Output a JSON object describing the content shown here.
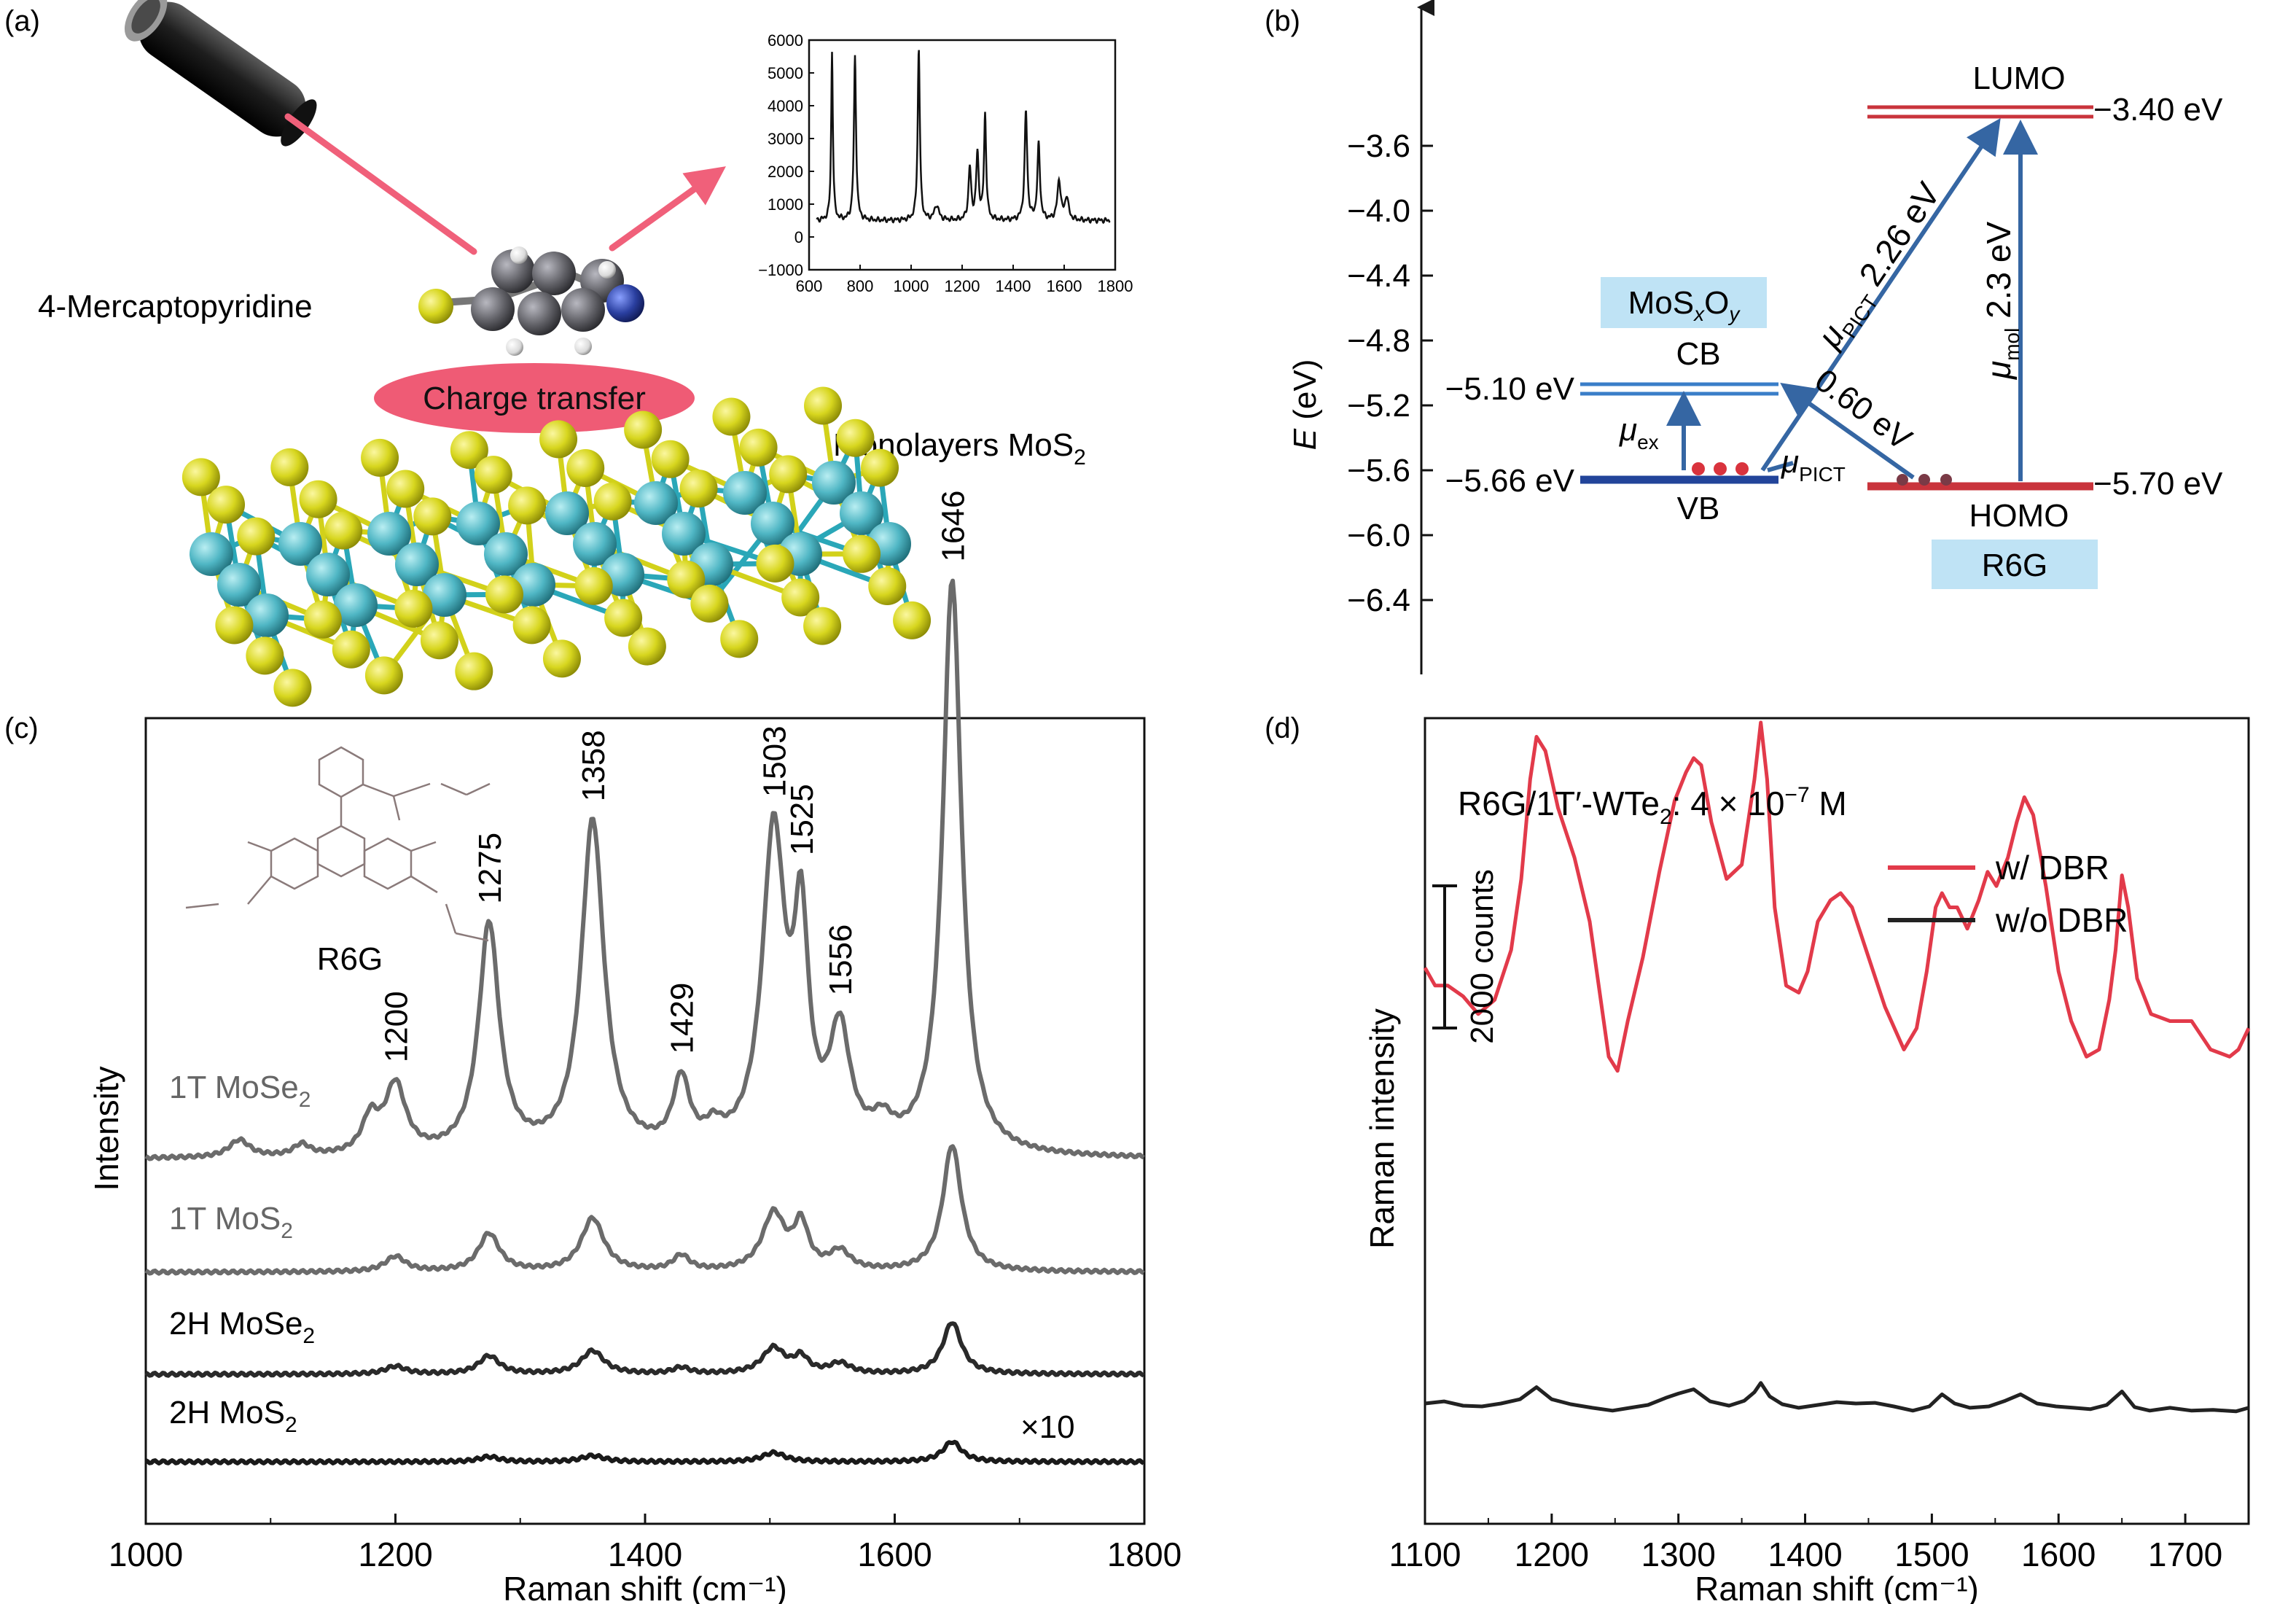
{
  "panel_a": {
    "label": "(a)",
    "molecule_label": "4-Mercaptopyridine",
    "charge_transfer_label": "Charge transfer",
    "substrate_label_main": "Monolayers MoS",
    "substrate_label_sub": "2",
    "colors": {
      "laser": "#f0607a",
      "sulfur": "#d7d61e",
      "molybdenum": "#4fb6c4",
      "carbon": "#606066",
      "nitrogen": "#2a3fa0",
      "hydrogen": "#e9e9e9",
      "ellipse": "#ef5b75"
    },
    "icons": [
      "laser-pointer-icon",
      "molecule-icon",
      "crystal-lattice-icon"
    ]
  },
  "panel_b": {
    "label": "(b)",
    "axis_label_main": "E",
    "axis_label_unit": " (eV)",
    "ticks": [
      "−3.6",
      "−4.0",
      "−4.4",
      "−4.8",
      "−5.2",
      "−5.6",
      "−6.0",
      "−6.4"
    ],
    "mosxoy_box": {
      "parts": [
        "MoS",
        "x",
        "O",
        "y"
      ]
    },
    "r6g_box": "R6G",
    "cb_label": "CB",
    "vb_label": "VB",
    "lumo_label": "LUMO",
    "homo_label": "HOMO",
    "cb_energy": "−5.10 eV",
    "vb_energy": "−5.66 eV",
    "lumo_energy": "−3.40 eV",
    "homo_energy": "−5.70 eV",
    "mu_ex": {
      "main": "μ",
      "sub": "ex"
    },
    "mu_pict_low": {
      "main": "μ",
      "sub": "PICT"
    },
    "mu_pict_high": {
      "main": "μ",
      "sub": "PICT",
      "value": " 2.26 eV"
    },
    "mu_mol": {
      "main": "μ",
      "sub": "mol",
      "value": " 2.3 eV"
    },
    "transfer_060": "0.60 eV",
    "colors": {
      "blue_level": "#3a7ec8",
      "vb_level": "#22449a",
      "red_level": "#c9343c",
      "arrow": "#3566a3",
      "box": "#bfe3f5",
      "dot": "#d9333d",
      "homo_dot": "#7a3a46"
    }
  },
  "panel_c": {
    "label": "(c)",
    "ylabel": "Intensity",
    "xlabel": "Raman shift (cm⁻¹)",
    "molecule_label": "R6G",
    "factor_label": "×10",
    "peak_labels": [
      "1200",
      "1275",
      "1358",
      "1429",
      "1503",
      "1525",
      "1556",
      "1646"
    ],
    "series_labels": [
      {
        "main": "1T MoSe",
        "sub": "2"
      },
      {
        "main": "1T MoS",
        "sub": "2"
      },
      {
        "main": "2H MoSe",
        "sub": "2"
      },
      {
        "main": "2H MoS",
        "sub": "2"
      }
    ],
    "x_ticks": [
      "1000",
      "1200",
      "1400",
      "1600",
      "1800"
    ]
  },
  "panel_d": {
    "label": "(d)",
    "ylabel": "Raman intensity",
    "xlabel": "Raman shift (cm⁻¹)",
    "annotation": {
      "p1": "R6G/1T′-WTe",
      "sub": "2",
      "p2": ": 4 × 10",
      "sup": "−7",
      "p3": " M"
    },
    "scale_label": "2000 counts",
    "x_ticks": [
      "1100",
      "1200",
      "1300",
      "1400",
      "1500",
      "1600",
      "1700"
    ],
    "legend": [
      "w/ DBR",
      "w/o DBR"
    ],
    "colors": {
      "with_dbr": "#e23a4a",
      "without_dbr": "#222222"
    }
  },
  "chart_data": [
    {
      "type": "line",
      "panel": "(a) inset",
      "xlim": [
        600,
        1800
      ],
      "ylim": [
        -1000,
        6000
      ],
      "x_ticks": [
        600,
        800,
        1000,
        1200,
        1400,
        1600,
        1800
      ],
      "y_ticks": [
        -1000,
        0,
        1000,
        2000,
        3000,
        4000,
        5000,
        6000
      ],
      "baseline": 500,
      "peaks": [
        {
          "x": 690,
          "y": 5150,
          "w": 4
        },
        {
          "x": 780,
          "y": 5000,
          "w": 5
        },
        {
          "x": 1030,
          "y": 5250,
          "w": 5
        },
        {
          "x": 1100,
          "y": 450,
          "w": 10
        },
        {
          "x": 1230,
          "y": 1600,
          "w": 6
        },
        {
          "x": 1260,
          "y": 2000,
          "w": 6
        },
        {
          "x": 1290,
          "y": 3200,
          "w": 5
        },
        {
          "x": 1450,
          "y": 3300,
          "w": 6
        },
        {
          "x": 1500,
          "y": 2300,
          "w": 6
        },
        {
          "x": 1580,
          "y": 1200,
          "w": 8
        },
        {
          "x": 1610,
          "y": 700,
          "w": 8
        }
      ]
    },
    {
      "type": "line",
      "panel": "(c)",
      "xlabel": "Raman shift (cm⁻¹)",
      "ylabel": "Intensity",
      "xlim": [
        1000,
        1800
      ],
      "x_ticks": [
        1000,
        1200,
        1400,
        1600,
        1800
      ],
      "series": [
        {
          "name": "1T MoSe2",
          "offset": 0.0,
          "scale": 1.0,
          "peaks": [
            {
              "x": 1075,
              "y": 0.03,
              "w": 10
            },
            {
              "x": 1125,
              "y": 0.02,
              "w": 8
            },
            {
              "x": 1180,
              "y": 0.06,
              "w": 8
            },
            {
              "x": 1200,
              "y": 0.12,
              "w": 10
            },
            {
              "x": 1275,
              "y": 0.4,
              "w": 10
            },
            {
              "x": 1358,
              "y": 0.58,
              "w": 11
            },
            {
              "x": 1429,
              "y": 0.12,
              "w": 8
            },
            {
              "x": 1455,
              "y": 0.03,
              "w": 8
            },
            {
              "x": 1503,
              "y": 0.55,
              "w": 11
            },
            {
              "x": 1525,
              "y": 0.36,
              "w": 7
            },
            {
              "x": 1556,
              "y": 0.2,
              "w": 10
            },
            {
              "x": 1590,
              "y": 0.04,
              "w": 10
            },
            {
              "x": 1646,
              "y": 1.0,
              "w": 9
            }
          ]
        },
        {
          "name": "1T MoS2",
          "offset": 0.0,
          "scale": 0.22,
          "peaks": [
            {
              "x": 1200,
              "y": 0.12,
              "w": 10
            },
            {
              "x": 1275,
              "y": 0.3,
              "w": 10
            },
            {
              "x": 1358,
              "y": 0.42,
              "w": 11
            },
            {
              "x": 1429,
              "y": 0.12,
              "w": 8
            },
            {
              "x": 1503,
              "y": 0.45,
              "w": 11
            },
            {
              "x": 1525,
              "y": 0.35,
              "w": 7
            },
            {
              "x": 1556,
              "y": 0.15,
              "w": 10
            },
            {
              "x": 1646,
              "y": 1.0,
              "w": 9
            }
          ]
        },
        {
          "name": "2H MoSe2",
          "offset": 0.0,
          "scale": 0.09,
          "peaks": [
            {
              "x": 1200,
              "y": 0.15,
              "w": 10
            },
            {
              "x": 1275,
              "y": 0.35,
              "w": 10
            },
            {
              "x": 1358,
              "y": 0.45,
              "w": 11
            },
            {
              "x": 1429,
              "y": 0.12,
              "w": 8
            },
            {
              "x": 1503,
              "y": 0.5,
              "w": 11
            },
            {
              "x": 1525,
              "y": 0.3,
              "w": 7
            },
            {
              "x": 1556,
              "y": 0.2,
              "w": 10
            },
            {
              "x": 1646,
              "y": 1.0,
              "w": 9
            }
          ]
        },
        {
          "name": "2H MoS2 (×10)",
          "offset": 0.0,
          "scale": 0.035,
          "peaks": [
            {
              "x": 1275,
              "y": 0.25,
              "w": 10
            },
            {
              "x": 1358,
              "y": 0.3,
              "w": 11
            },
            {
              "x": 1503,
              "y": 0.45,
              "w": 11
            },
            {
              "x": 1646,
              "y": 1.0,
              "w": 9
            }
          ]
        }
      ]
    },
    {
      "type": "line",
      "panel": "(d)",
      "xlabel": "Raman shift (cm⁻¹)",
      "ylabel": "Raman intensity",
      "xlim": [
        1100,
        1750
      ],
      "x_ticks": [
        1100,
        1200,
        1300,
        1400,
        1500,
        1600,
        1700
      ],
      "scale_bar_counts": 2000,
      "series": [
        {
          "name": "w/ DBR",
          "x": [
            1100,
            1108,
            1118,
            1130,
            1142,
            1155,
            1168,
            1176,
            1183,
            1188,
            1195,
            1205,
            1218,
            1230,
            1245,
            1252,
            1260,
            1272,
            1285,
            1297,
            1306,
            1312,
            1318,
            1326,
            1338,
            1350,
            1360,
            1365,
            1370,
            1376,
            1385,
            1395,
            1402,
            1410,
            1420,
            1428,
            1437,
            1450,
            1463,
            1478,
            1488,
            1496,
            1503,
            1508,
            1514,
            1520,
            1528,
            1537,
            1544,
            1551,
            1560,
            1567,
            1573,
            1580,
            1590,
            1600,
            1610,
            1622,
            1632,
            1640,
            1645,
            1650,
            1655,
            1662,
            1673,
            1688,
            1705,
            1720,
            1735,
            1742,
            1750
          ],
          "y": [
            6950,
            6700,
            6700,
            6550,
            6300,
            6500,
            7200,
            8200,
            9600,
            10200,
            10000,
            9200,
            8500,
            7600,
            5700,
            5500,
            6200,
            7100,
            8300,
            9300,
            9700,
            9900,
            9800,
            9000,
            8200,
            8400,
            9600,
            10400,
            9600,
            7800,
            6700,
            6600,
            6900,
            7600,
            7900,
            8000,
            7800,
            7100,
            6400,
            5800,
            6100,
            6900,
            7800,
            8000,
            7800,
            7800,
            7500,
            7900,
            8300,
            8100,
            8500,
            9000,
            9350,
            9100,
            8100,
            6900,
            6200,
            5700,
            5800,
            6500,
            7200,
            8250,
            7800,
            6800,
            6300,
            6200,
            6200,
            5800,
            5700,
            5800,
            6100
          ]
        },
        {
          "name": "w/o DBR",
          "x": [
            1100,
            1115,
            1130,
            1145,
            1160,
            1175,
            1188,
            1200,
            1215,
            1232,
            1248,
            1262,
            1276,
            1290,
            1300,
            1312,
            1325,
            1340,
            1352,
            1360,
            1365,
            1372,
            1382,
            1395,
            1410,
            1425,
            1440,
            1455,
            1470,
            1485,
            1498,
            1508,
            1518,
            1530,
            1545,
            1558,
            1570,
            1583,
            1598,
            1612,
            1625,
            1638,
            1650,
            1660,
            1672,
            1688,
            1705,
            1722,
            1740,
            1750
          ],
          "y": [
            820,
            850,
            790,
            780,
            820,
            880,
            1050,
            880,
            810,
            760,
            720,
            760,
            800,
            900,
            960,
            1020,
            850,
            790,
            860,
            980,
            1110,
            920,
            810,
            760,
            800,
            840,
            820,
            830,
            780,
            720,
            780,
            950,
            820,
            760,
            780,
            860,
            950,
            820,
            780,
            760,
            740,
            800,
            990,
            770,
            720,
            760,
            720,
            730,
            710,
            760
          ]
        }
      ]
    }
  ]
}
